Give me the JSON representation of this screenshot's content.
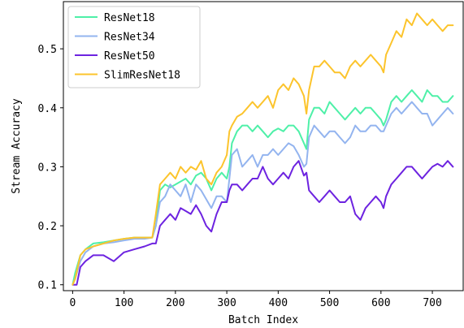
{
  "chart_data": {
    "type": "line",
    "xlabel": "Batch Index",
    "ylabel": "Stream Accuracy",
    "xlim": [
      -18,
      760
    ],
    "ylim": [
      0.09,
      0.58
    ],
    "xticks": [
      0,
      100,
      200,
      300,
      400,
      500,
      600,
      700
    ],
    "yticks": [
      0.1,
      0.2,
      0.3,
      0.4,
      0.5
    ],
    "ytick_labels": [
      "0.1",
      "0.2",
      "0.3",
      "0.4",
      "0.5"
    ],
    "grid": false,
    "legend_position": "top-left",
    "series": [
      {
        "name": "ResNet18",
        "color": "#4ef0a8",
        "points": [
          [
            0,
            0.1
          ],
          [
            5,
            0.12
          ],
          [
            15,
            0.15
          ],
          [
            25,
            0.16
          ],
          [
            40,
            0.17
          ],
          [
            60,
            0.172
          ],
          [
            80,
            0.175
          ],
          [
            100,
            0.178
          ],
          [
            120,
            0.18
          ],
          [
            140,
            0.18
          ],
          [
            155,
            0.18
          ],
          [
            162,
            0.2
          ],
          [
            170,
            0.26
          ],
          [
            180,
            0.27
          ],
          [
            190,
            0.265
          ],
          [
            200,
            0.27
          ],
          [
            210,
            0.275
          ],
          [
            220,
            0.28
          ],
          [
            230,
            0.27
          ],
          [
            240,
            0.285
          ],
          [
            250,
            0.29
          ],
          [
            260,
            0.28
          ],
          [
            270,
            0.26
          ],
          [
            280,
            0.28
          ],
          [
            290,
            0.29
          ],
          [
            300,
            0.28
          ],
          [
            305,
            0.3
          ],
          [
            310,
            0.34
          ],
          [
            320,
            0.36
          ],
          [
            330,
            0.37
          ],
          [
            340,
            0.37
          ],
          [
            350,
            0.36
          ],
          [
            360,
            0.37
          ],
          [
            370,
            0.36
          ],
          [
            380,
            0.35
          ],
          [
            390,
            0.36
          ],
          [
            400,
            0.365
          ],
          [
            410,
            0.36
          ],
          [
            420,
            0.37
          ],
          [
            430,
            0.37
          ],
          [
            440,
            0.36
          ],
          [
            450,
            0.34
          ],
          [
            455,
            0.33
          ],
          [
            460,
            0.38
          ],
          [
            470,
            0.4
          ],
          [
            480,
            0.4
          ],
          [
            490,
            0.39
          ],
          [
            500,
            0.41
          ],
          [
            510,
            0.4
          ],
          [
            520,
            0.39
          ],
          [
            530,
            0.38
          ],
          [
            540,
            0.39
          ],
          [
            550,
            0.4
          ],
          [
            560,
            0.39
          ],
          [
            570,
            0.4
          ],
          [
            580,
            0.4
          ],
          [
            590,
            0.39
          ],
          [
            600,
            0.38
          ],
          [
            605,
            0.37
          ],
          [
            610,
            0.38
          ],
          [
            620,
            0.41
          ],
          [
            630,
            0.42
          ],
          [
            640,
            0.41
          ],
          [
            650,
            0.42
          ],
          [
            660,
            0.43
          ],
          [
            670,
            0.42
          ],
          [
            680,
            0.41
          ],
          [
            690,
            0.43
          ],
          [
            700,
            0.42
          ],
          [
            710,
            0.42
          ],
          [
            720,
            0.41
          ],
          [
            730,
            0.41
          ],
          [
            740,
            0.42
          ]
        ]
      },
      {
        "name": "ResNet34",
        "color": "#93b4ef",
        "points": [
          [
            0,
            0.1
          ],
          [
            5,
            0.11
          ],
          [
            15,
            0.14
          ],
          [
            25,
            0.155
          ],
          [
            40,
            0.165
          ],
          [
            60,
            0.17
          ],
          [
            80,
            0.172
          ],
          [
            100,
            0.175
          ],
          [
            120,
            0.178
          ],
          [
            140,
            0.178
          ],
          [
            155,
            0.18
          ],
          [
            162,
            0.2
          ],
          [
            170,
            0.24
          ],
          [
            180,
            0.25
          ],
          [
            190,
            0.27
          ],
          [
            200,
            0.26
          ],
          [
            210,
            0.25
          ],
          [
            220,
            0.27
          ],
          [
            230,
            0.24
          ],
          [
            240,
            0.27
          ],
          [
            250,
            0.26
          ],
          [
            260,
            0.245
          ],
          [
            270,
            0.23
          ],
          [
            280,
            0.25
          ],
          [
            290,
            0.25
          ],
          [
            300,
            0.24
          ],
          [
            305,
            0.28
          ],
          [
            310,
            0.32
          ],
          [
            320,
            0.33
          ],
          [
            330,
            0.3
          ],
          [
            340,
            0.31
          ],
          [
            350,
            0.32
          ],
          [
            360,
            0.3
          ],
          [
            370,
            0.32
          ],
          [
            380,
            0.32
          ],
          [
            390,
            0.33
          ],
          [
            400,
            0.32
          ],
          [
            410,
            0.33
          ],
          [
            420,
            0.34
          ],
          [
            430,
            0.335
          ],
          [
            440,
            0.32
          ],
          [
            450,
            0.3
          ],
          [
            455,
            0.305
          ],
          [
            460,
            0.35
          ],
          [
            470,
            0.37
          ],
          [
            480,
            0.36
          ],
          [
            490,
            0.35
          ],
          [
            500,
            0.36
          ],
          [
            510,
            0.36
          ],
          [
            520,
            0.35
          ],
          [
            530,
            0.34
          ],
          [
            540,
            0.35
          ],
          [
            550,
            0.37
          ],
          [
            560,
            0.36
          ],
          [
            570,
            0.36
          ],
          [
            580,
            0.37
          ],
          [
            590,
            0.37
          ],
          [
            600,
            0.36
          ],
          [
            605,
            0.36
          ],
          [
            610,
            0.37
          ],
          [
            620,
            0.39
          ],
          [
            630,
            0.4
          ],
          [
            640,
            0.39
          ],
          [
            650,
            0.4
          ],
          [
            660,
            0.41
          ],
          [
            670,
            0.4
          ],
          [
            680,
            0.39
          ],
          [
            690,
            0.39
          ],
          [
            700,
            0.37
          ],
          [
            710,
            0.38
          ],
          [
            720,
            0.39
          ],
          [
            730,
            0.4
          ],
          [
            740,
            0.39
          ]
        ]
      },
      {
        "name": "ResNet50",
        "color": "#6d23e0",
        "points": [
          [
            0,
            0.1
          ],
          [
            8,
            0.1
          ],
          [
            15,
            0.13
          ],
          [
            25,
            0.14
          ],
          [
            40,
            0.15
          ],
          [
            60,
            0.15
          ],
          [
            80,
            0.14
          ],
          [
            100,
            0.155
          ],
          [
            120,
            0.16
          ],
          [
            140,
            0.165
          ],
          [
            155,
            0.17
          ],
          [
            162,
            0.17
          ],
          [
            170,
            0.2
          ],
          [
            180,
            0.21
          ],
          [
            190,
            0.22
          ],
          [
            200,
            0.21
          ],
          [
            210,
            0.23
          ],
          [
            220,
            0.225
          ],
          [
            230,
            0.22
          ],
          [
            240,
            0.235
          ],
          [
            250,
            0.22
          ],
          [
            260,
            0.2
          ],
          [
            270,
            0.19
          ],
          [
            280,
            0.22
          ],
          [
            290,
            0.24
          ],
          [
            300,
            0.24
          ],
          [
            305,
            0.26
          ],
          [
            310,
            0.27
          ],
          [
            320,
            0.27
          ],
          [
            330,
            0.26
          ],
          [
            340,
            0.27
          ],
          [
            350,
            0.28
          ],
          [
            360,
            0.28
          ],
          [
            370,
            0.3
          ],
          [
            380,
            0.28
          ],
          [
            390,
            0.27
          ],
          [
            400,
            0.28
          ],
          [
            410,
            0.29
          ],
          [
            420,
            0.28
          ],
          [
            430,
            0.3
          ],
          [
            440,
            0.31
          ],
          [
            450,
            0.285
          ],
          [
            455,
            0.29
          ],
          [
            460,
            0.26
          ],
          [
            470,
            0.25
          ],
          [
            480,
            0.24
          ],
          [
            490,
            0.25
          ],
          [
            500,
            0.26
          ],
          [
            510,
            0.25
          ],
          [
            520,
            0.24
          ],
          [
            530,
            0.24
          ],
          [
            540,
            0.25
          ],
          [
            550,
            0.22
          ],
          [
            560,
            0.21
          ],
          [
            570,
            0.23
          ],
          [
            580,
            0.24
          ],
          [
            590,
            0.25
          ],
          [
            600,
            0.24
          ],
          [
            605,
            0.23
          ],
          [
            610,
            0.25
          ],
          [
            620,
            0.27
          ],
          [
            630,
            0.28
          ],
          [
            640,
            0.29
          ],
          [
            650,
            0.3
          ],
          [
            660,
            0.3
          ],
          [
            670,
            0.29
          ],
          [
            680,
            0.28
          ],
          [
            690,
            0.29
          ],
          [
            700,
            0.3
          ],
          [
            710,
            0.305
          ],
          [
            720,
            0.3
          ],
          [
            730,
            0.31
          ],
          [
            740,
            0.3
          ]
        ]
      },
      {
        "name": "SlimResNet18",
        "color": "#fcc42c",
        "points": [
          [
            0,
            0.1
          ],
          [
            5,
            0.11
          ],
          [
            15,
            0.15
          ],
          [
            25,
            0.16
          ],
          [
            40,
            0.165
          ],
          [
            60,
            0.17
          ],
          [
            80,
            0.175
          ],
          [
            100,
            0.178
          ],
          [
            120,
            0.18
          ],
          [
            140,
            0.18
          ],
          [
            155,
            0.18
          ],
          [
            162,
            0.22
          ],
          [
            170,
            0.27
          ],
          [
            180,
            0.28
          ],
          [
            190,
            0.29
          ],
          [
            200,
            0.28
          ],
          [
            210,
            0.3
          ],
          [
            220,
            0.29
          ],
          [
            230,
            0.3
          ],
          [
            240,
            0.295
          ],
          [
            250,
            0.31
          ],
          [
            260,
            0.28
          ],
          [
            270,
            0.27
          ],
          [
            280,
            0.29
          ],
          [
            290,
            0.3
          ],
          [
            300,
            0.32
          ],
          [
            305,
            0.36
          ],
          [
            310,
            0.37
          ],
          [
            320,
            0.385
          ],
          [
            330,
            0.39
          ],
          [
            340,
            0.4
          ],
          [
            350,
            0.41
          ],
          [
            360,
            0.4
          ],
          [
            370,
            0.41
          ],
          [
            380,
            0.42
          ],
          [
            390,
            0.4
          ],
          [
            400,
            0.43
          ],
          [
            410,
            0.44
          ],
          [
            420,
            0.43
          ],
          [
            430,
            0.45
          ],
          [
            440,
            0.44
          ],
          [
            450,
            0.42
          ],
          [
            455,
            0.39
          ],
          [
            460,
            0.43
          ],
          [
            470,
            0.47
          ],
          [
            480,
            0.47
          ],
          [
            490,
            0.48
          ],
          [
            500,
            0.47
          ],
          [
            510,
            0.46
          ],
          [
            520,
            0.46
          ],
          [
            530,
            0.45
          ],
          [
            540,
            0.47
          ],
          [
            550,
            0.48
          ],
          [
            560,
            0.47
          ],
          [
            570,
            0.48
          ],
          [
            580,
            0.49
          ],
          [
            590,
            0.48
          ],
          [
            600,
            0.47
          ],
          [
            605,
            0.46
          ],
          [
            610,
            0.49
          ],
          [
            620,
            0.51
          ],
          [
            630,
            0.53
          ],
          [
            640,
            0.52
          ],
          [
            650,
            0.55
          ],
          [
            660,
            0.54
          ],
          [
            670,
            0.56
          ],
          [
            680,
            0.55
          ],
          [
            690,
            0.54
          ],
          [
            700,
            0.55
          ],
          [
            710,
            0.54
          ],
          [
            720,
            0.53
          ],
          [
            730,
            0.54
          ],
          [
            740,
            0.54
          ]
        ]
      }
    ]
  }
}
